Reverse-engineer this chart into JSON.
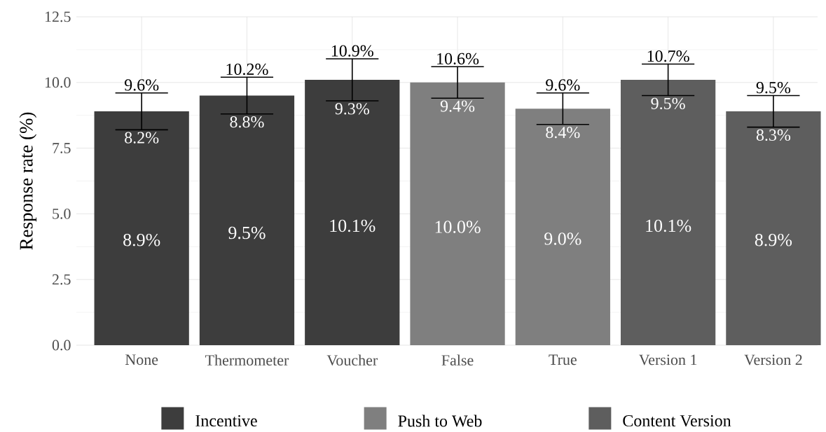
{
  "chart_data": {
    "type": "bar",
    "ylabel": "Response rate (%)",
    "categories": [
      "None",
      "Thermometer",
      "Voucher",
      "False",
      "True",
      "Version 1",
      "Version 2"
    ],
    "series": [
      {
        "name": "Incentive",
        "color": "#3d3d3d",
        "values": [
          8.9,
          9.5,
          10.1,
          null,
          null,
          null,
          null
        ],
        "errors": [
          [
            8.2,
            9.6
          ],
          [
            8.8,
            10.2
          ],
          [
            9.3,
            10.9
          ],
          null,
          null,
          null,
          null
        ],
        "value_labels": [
          "8.9%",
          "9.5%",
          "10.1%",
          null,
          null,
          null,
          null
        ]
      },
      {
        "name": "Push to Web",
        "color": "#7f7f7f",
        "values": [
          null,
          null,
          null,
          10.0,
          9.0,
          null,
          null
        ],
        "errors": [
          null,
          null,
          null,
          [
            9.4,
            10.6
          ],
          [
            8.4,
            9.6
          ],
          null,
          null
        ],
        "value_labels": [
          null,
          null,
          null,
          "10.0%",
          "9.0%",
          null,
          null
        ]
      },
      {
        "name": "Content Version",
        "color": "#5e5e5e",
        "values": [
          null,
          null,
          null,
          null,
          null,
          10.1,
          8.9
        ],
        "errors": [
          null,
          null,
          null,
          null,
          null,
          [
            9.5,
            10.7
          ],
          [
            8.3,
            9.5
          ]
        ],
        "value_labels": [
          null,
          null,
          null,
          null,
          null,
          "10.1%",
          "8.9%"
        ]
      }
    ],
    "ylim": [
      0,
      12.5
    ],
    "yticks": [
      {
        "value": 0,
        "label": "0.0"
      },
      2.5,
      {
        "value": 5,
        "label": "5.0"
      },
      7.5,
      {
        "value": 10,
        "label": "10.0"
      },
      12.5
    ],
    "annotations": [
      {
        "text": "9.6%",
        "x": "None",
        "y": 9.6
      },
      {
        "text": "8.2%",
        "x": "None",
        "y": 8.2
      },
      {
        "text": "10.2%",
        "x": "Thermometer",
        "y": 10.2
      },
      {
        "text": "8.8%",
        "x": "Thermometer",
        "y": 8.8
      },
      {
        "text": "10.9%",
        "x": "Voucher",
        "y": 10.9
      },
      {
        "text": "9.3%",
        "x": "Voucher",
        "y": 9.3
      },
      {
        "text": "10.6%",
        "x": "False",
        "y": 10.6
      },
      {
        "text": "9.4%",
        "x": "False",
        "y": 9.4
      },
      {
        "text": "9.6%",
        "x": "True",
        "y": 9.6
      },
      {
        "text": "8.4%",
        "x": "True",
        "y": 8.4
      },
      {
        "text": "10.7%",
        "x": "Version 1",
        "y": 10.7
      },
      {
        "text": "9.5%",
        "x": "Version 1",
        "y": 9.5
      },
      {
        "text": "9.5%",
        "x": "Version 2",
        "y": 9.5
      },
      {
        "text": "8.3%",
        "x": "Version 2",
        "y": 8.3
      }
    ],
    "grid": true,
    "legend": "bottom"
  }
}
